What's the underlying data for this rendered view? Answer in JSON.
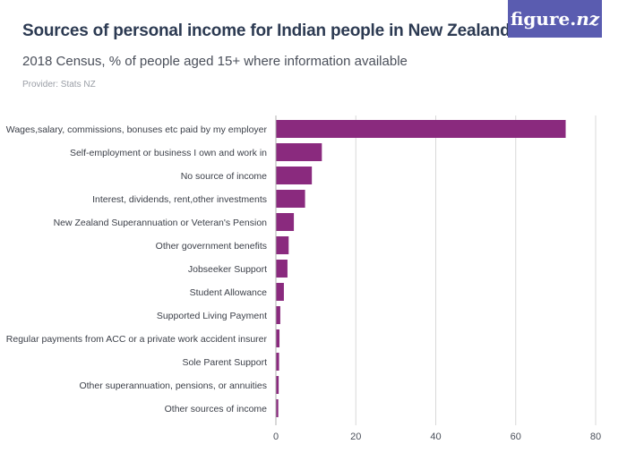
{
  "header": {
    "title": "Sources of personal income for Indian people in New Zealand",
    "subtitle": "2018 Census, % of people aged 15+ where information available",
    "provider": "Provider: Stats NZ"
  },
  "logo": {
    "text_main": "figure.",
    "text_nz": "nz",
    "background": "#5a5cb0"
  },
  "chart_data": {
    "type": "bar",
    "orientation": "horizontal",
    "categories": [
      "Wages,salary, commissions, bonuses etc paid by my employer",
      "Self-employment or business I own and work in",
      "No source of income",
      "Interest, dividends, rent,other investments",
      "New Zealand Superannuation or Veteran's Pension",
      "Other government benefits",
      "Jobseeker Support",
      "Student Allowance",
      "Supported Living Payment",
      "Regular payments from ACC or a private work accident insurer",
      "Sole Parent Support",
      "Other superannuation, pensions, or annuities",
      "Other sources of income"
    ],
    "values": [
      72.5,
      11.5,
      9.0,
      7.3,
      4.5,
      3.2,
      2.9,
      2.0,
      1.1,
      0.9,
      0.8,
      0.7,
      0.6
    ],
    "xlim": [
      0,
      80
    ],
    "xticks": [
      0,
      20,
      40,
      60,
      80
    ],
    "bar_color": "#8a2a7e",
    "grid": true
  }
}
